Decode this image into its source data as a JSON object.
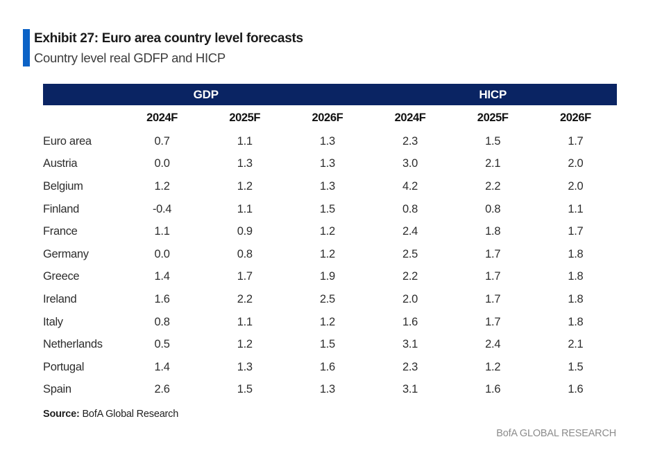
{
  "header": {
    "title": "Exhibit 27: Euro area country level forecasts",
    "subtitle": "Country level real GDFP and HICP"
  },
  "table": {
    "group_headers": [
      "GDP",
      "HICP"
    ],
    "columns": [
      "2024F",
      "2025F",
      "2026F",
      "2024F",
      "2025F",
      "2026F"
    ],
    "rows": [
      {
        "country": "Euro area",
        "values": [
          "0.7",
          "1.1",
          "1.3",
          "2.3",
          "1.5",
          "1.7"
        ]
      },
      {
        "country": "Austria",
        "values": [
          "0.0",
          "1.3",
          "1.3",
          "3.0",
          "2.1",
          "2.0"
        ]
      },
      {
        "country": "Belgium",
        "values": [
          "1.2",
          "1.2",
          "1.3",
          "4.2",
          "2.2",
          "2.0"
        ]
      },
      {
        "country": "Finland",
        "values": [
          "-0.4",
          "1.1",
          "1.5",
          "0.8",
          "0.8",
          "1.1"
        ]
      },
      {
        "country": "France",
        "values": [
          "1.1",
          "0.9",
          "1.2",
          "2.4",
          "1.8",
          "1.7"
        ]
      },
      {
        "country": "Germany",
        "values": [
          "0.0",
          "0.8",
          "1.2",
          "2.5",
          "1.7",
          "1.8"
        ]
      },
      {
        "country": "Greece",
        "values": [
          "1.4",
          "1.7",
          "1.9",
          "2.2",
          "1.7",
          "1.8"
        ]
      },
      {
        "country": "Ireland",
        "values": [
          "1.6",
          "2.2",
          "2.5",
          "2.0",
          "1.7",
          "1.8"
        ]
      },
      {
        "country": "Italy",
        "values": [
          "0.8",
          "1.1",
          "1.2",
          "1.6",
          "1.7",
          "1.8"
        ]
      },
      {
        "country": "Netherlands",
        "values": [
          "0.5",
          "1.2",
          "1.5",
          "3.1",
          "2.4",
          "2.1"
        ]
      },
      {
        "country": "Portugal",
        "values": [
          "1.4",
          "1.3",
          "1.6",
          "2.3",
          "1.2",
          "1.5"
        ]
      },
      {
        "country": "Spain",
        "values": [
          "2.6",
          "1.5",
          "1.3",
          "3.1",
          "1.6",
          "1.6"
        ]
      }
    ]
  },
  "footer": {
    "source_label": "Source:",
    "source_text": "BofA Global Research",
    "brand": "BofA GLOBAL RESEARCH"
  },
  "colors": {
    "accent_blue": "#0B62C6",
    "header_navy": "#0A2463",
    "brand_gray": "#8C8C8C"
  }
}
